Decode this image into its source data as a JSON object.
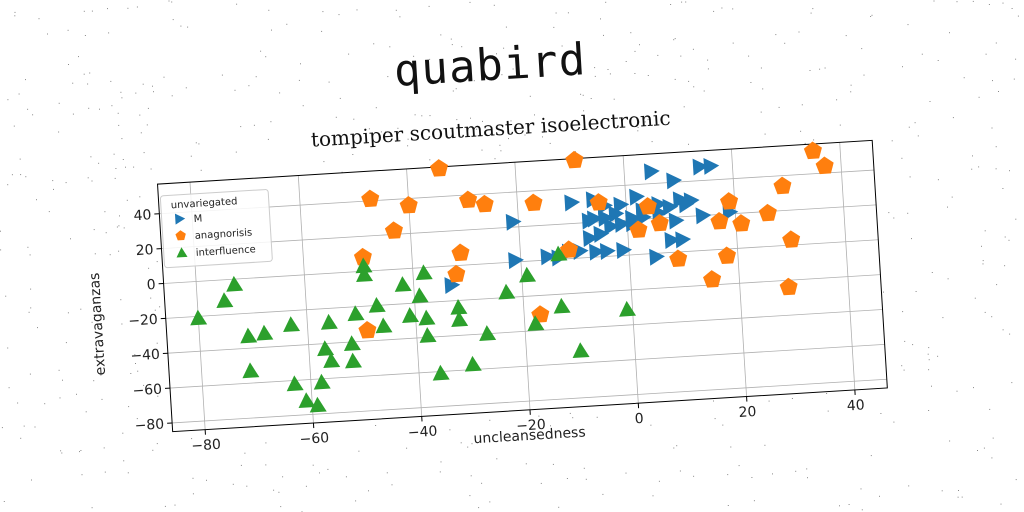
{
  "page_title": "quabird",
  "chart_data": {
    "type": "scatter",
    "title": "tompiper scoutmaster isoelectronic",
    "xlabel": "uncleansedness",
    "ylabel": "extravaganzas",
    "xlim": [
      -86,
      46
    ],
    "ylim": [
      -85,
      57
    ],
    "xticks": [
      -80,
      -60,
      -40,
      -20,
      0,
      20,
      40
    ],
    "yticks": [
      -80,
      -60,
      -40,
      -20,
      0,
      20,
      40
    ],
    "xtick_labels": [
      "−80",
      "−60",
      "−40",
      "−20",
      "0",
      "20",
      "40"
    ],
    "ytick_labels": [
      "−80",
      "−60",
      "−40",
      "−20",
      "0",
      "20",
      "40"
    ],
    "grid": true,
    "legend": {
      "title": "unvariegated",
      "placement": "upper-left"
    },
    "series": [
      {
        "name": "M",
        "marker": "triangle-right",
        "color": "#1f77b4",
        "points": [
          [
            5,
            47
          ],
          [
            14,
            48
          ],
          [
            16,
            48
          ],
          [
            9,
            41
          ],
          [
            -10,
            32
          ],
          [
            -6,
            33
          ],
          [
            -4,
            29
          ],
          [
            -1,
            29
          ],
          [
            2,
            33
          ],
          [
            6,
            28
          ],
          [
            10,
            30
          ],
          [
            12,
            29
          ],
          [
            3,
            25
          ],
          [
            8,
            26
          ],
          [
            11,
            27
          ],
          [
            -2,
            24
          ],
          [
            1,
            21
          ],
          [
            3,
            21
          ],
          [
            -7,
            21
          ],
          [
            -6,
            22
          ],
          [
            -4,
            22
          ],
          [
            6,
            23
          ],
          [
            -21,
            23
          ],
          [
            14,
            20
          ],
          [
            19,
            21
          ],
          [
            1,
            18
          ],
          [
            -1,
            18
          ],
          [
            -3,
            17
          ],
          [
            9,
            18
          ],
          [
            -5,
            13
          ],
          [
            -7,
            11
          ],
          [
            -11,
            4
          ],
          [
            -9,
            4
          ],
          [
            -6,
            3
          ],
          [
            -4,
            3
          ],
          [
            -1,
            3
          ],
          [
            -21,
            1
          ],
          [
            -13,
            1
          ],
          [
            -15,
            2
          ],
          [
            5,
            -2
          ],
          [
            8,
            7
          ],
          [
            10,
            7
          ],
          [
            -33,
            -11
          ]
        ]
      },
      {
        "name": "anagnorisis",
        "marker": "pentagon",
        "color": "#ff7f0e",
        "points": [
          [
            -34,
            56
          ],
          [
            -9,
            56
          ],
          [
            35,
            53
          ],
          [
            37,
            44
          ],
          [
            -47,
            41
          ],
          [
            -40,
            36
          ],
          [
            -29,
            37
          ],
          [
            -26,
            34
          ],
          [
            -17,
            33
          ],
          [
            -5,
            31
          ],
          [
            19,
            27
          ],
          [
            29,
            34
          ],
          [
            4,
            27
          ],
          [
            -43,
            22
          ],
          [
            2,
            14
          ],
          [
            6,
            17
          ],
          [
            17,
            16
          ],
          [
            21,
            14
          ],
          [
            26,
            19
          ],
          [
            -49,
            8
          ],
          [
            -31,
            7
          ],
          [
            -11,
            5
          ],
          [
            30,
            3
          ],
          [
            -32,
            -5
          ],
          [
            9,
            -4
          ],
          [
            18,
            -4
          ],
          [
            15,
            -17
          ],
          [
            -17,
            -31
          ],
          [
            -49,
            -34
          ],
          [
            29,
            -24
          ]
        ]
      },
      {
        "name": "interfluence",
        "marker": "triangle-up",
        "color": "#2ca02c",
        "points": [
          [
            -73,
            -3
          ],
          [
            -49,
            3
          ],
          [
            -49,
            -2
          ],
          [
            -38,
            -3
          ],
          [
            -42,
            -9
          ],
          [
            -13,
            3
          ],
          [
            -39,
            -16
          ],
          [
            -47,
            -20
          ],
          [
            -19,
            -8
          ],
          [
            -23,
            -17
          ],
          [
            -80,
            -21
          ],
          [
            -75,
            -12
          ],
          [
            -56,
            -28
          ],
          [
            -51,
            -24
          ],
          [
            -41,
            -27
          ],
          [
            -38,
            -29
          ],
          [
            -32,
            -24
          ],
          [
            -71,
            -33
          ],
          [
            -68,
            -32
          ],
          [
            -63,
            -28
          ],
          [
            -46,
            -32
          ],
          [
            -13,
            -27
          ],
          [
            -32,
            -31
          ],
          [
            -18,
            -36
          ],
          [
            -38,
            -39
          ],
          [
            -52,
            -41
          ],
          [
            -57,
            -43
          ],
          [
            -27,
            -40
          ],
          [
            -56,
            -50
          ],
          [
            -52,
            -51
          ],
          [
            -71,
            -53
          ],
          [
            -10,
            -53
          ],
          [
            -30,
            -57
          ],
          [
            -58,
            -62
          ],
          [
            -63,
            -62
          ],
          [
            -36,
            -61
          ],
          [
            -61,
            -72
          ],
          [
            -59,
            -75
          ],
          [
            -1,
            -31
          ]
        ]
      }
    ]
  }
}
